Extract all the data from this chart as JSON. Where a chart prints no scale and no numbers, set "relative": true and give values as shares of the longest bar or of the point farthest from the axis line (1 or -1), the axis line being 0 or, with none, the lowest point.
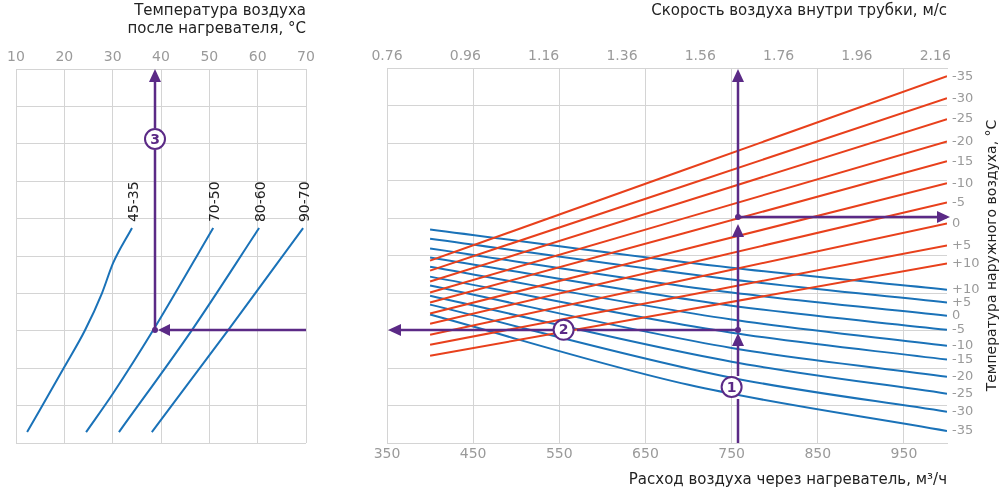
{
  "chart_data": [
    {
      "type": "line",
      "xlabel": "Температура воздуха после нагревателя, °С",
      "xlim": [
        10,
        70
      ],
      "xticks": [
        10,
        20,
        30,
        40,
        50,
        60,
        70
      ],
      "relative": true,
      "grid": true,
      "annotations": [
        "3"
      ],
      "series": [
        {
          "name": "45-35",
          "color": "#1a72b8",
          "x": [
            12.3,
            20,
            24.3,
            27.8,
            30.1,
            34
          ],
          "values": [
            -1,
            -0.821,
            -0.719,
            -0.617,
            -0.534,
            -0.438
          ]
        },
        {
          "name": "70-50",
          "color": "#1a72b8",
          "x": [
            24.5,
            30.1,
            38.4,
            50.8
          ],
          "values": [
            -1,
            -0.893,
            -0.719,
            -0.438
          ]
        },
        {
          "name": "80-60",
          "color": "#1a72b8",
          "x": [
            31.3,
            46.4,
            60.3
          ],
          "values": [
            -1,
            -0.719,
            -0.438
          ]
        },
        {
          "name": "90-70",
          "color": "#1a72b8",
          "x": [
            38.1,
            53.9,
            69.4
          ],
          "values": [
            -1,
            -0.719,
            -0.438
          ]
        }
      ]
    },
    {
      "type": "line",
      "xlabel": "Расход воздуха через нагреватель, м³/ч",
      "x2label": "Скорость воздуха внутри трубки, м/с",
      "ylabel": "Температура наружного воздуха, °С",
      "xlim": [
        350,
        1000
      ],
      "xticks": [
        350,
        450,
        550,
        650,
        750,
        850,
        950
      ],
      "x2lim": [
        0.76,
        2.19
      ],
      "x2ticks": [
        0.76,
        0.96,
        1.16,
        1.36,
        1.56,
        1.76,
        1.96,
        2.16
      ],
      "relative": true,
      "grid": true,
      "annotations": [
        {
          "text": "1",
          "x": 750,
          "y": 0.124
        },
        {
          "text": "2",
          "x": 555,
          "y": 0.285
        }
      ],
      "series": [
        {
          "name": "-35",
          "color": "#e8401c",
          "x": [
            400,
            1000
          ],
          "values": [
            0.48,
            1
          ]
        },
        {
          "name": "-30",
          "color": "#e8401c",
          "x": [
            400,
            1000
          ],
          "values": [
            0.452,
            0.938
          ]
        },
        {
          "name": "-25",
          "color": "#e8401c",
          "x": [
            400,
            1000
          ],
          "values": [
            0.421,
            0.879
          ]
        },
        {
          "name": "-20",
          "color": "#e8401c",
          "x": [
            400,
            1000
          ],
          "values": [
            0.39,
            0.816
          ]
        },
        {
          "name": "-15",
          "color": "#e8401c",
          "x": [
            400,
            1000
          ],
          "values": [
            0.362,
            0.76
          ]
        },
        {
          "name": "-10",
          "color": "#e8401c",
          "x": [
            400,
            1000
          ],
          "values": [
            0.331,
            0.698
          ]
        },
        {
          "name": "-5",
          "color": "#e8401c",
          "x": [
            400,
            1000
          ],
          "values": [
            0.302,
            0.644
          ]
        },
        {
          "name": "0",
          "color": "#e8401c",
          "x": [
            400,
            1000
          ],
          "values": [
            0.271,
            0.585
          ]
        },
        {
          "name": "+5",
          "color": "#e8401c",
          "x": [
            400,
            1000
          ],
          "values": [
            0.243,
            0.523
          ]
        },
        {
          "name": "+10",
          "color": "#e8401c",
          "x": [
            400,
            1000
          ],
          "values": [
            0.212,
            0.472
          ]
        },
        {
          "name": "+10",
          "color": "#1a72b8",
          "x": [
            400,
            750,
            1000
          ],
          "values": [
            0.568,
            0.46,
            0.398
          ]
        },
        {
          "name": "+5",
          "color": "#1a72b8",
          "x": [
            400,
            750,
            1000
          ],
          "values": [
            0.542,
            0.427,
            0.362
          ]
        },
        {
          "name": "0",
          "color": "#1a72b8",
          "x": [
            400,
            750,
            1000
          ],
          "values": [
            0.514,
            0.39,
            0.325
          ]
        },
        {
          "name": "-5",
          "color": "#1a72b8",
          "x": [
            400,
            750,
            1000
          ],
          "values": [
            0.489,
            0.353,
            0.285
          ]
        },
        {
          "name": "-10",
          "color": "#1a72b8",
          "x": [
            400,
            750,
            1000
          ],
          "values": [
            0.463,
            0.314,
            0.24
          ]
        },
        {
          "name": "-15",
          "color": "#1a72b8",
          "x": [
            400,
            750,
            1000
          ],
          "values": [
            0.435,
            0.277,
            0.201
          ]
        },
        {
          "name": "-20",
          "color": "#1a72b8",
          "x": [
            400,
            750,
            1000
          ],
          "values": [
            0.41,
            0.234,
            0.153
          ]
        },
        {
          "name": "-25",
          "color": "#1a72b8",
          "x": [
            400,
            750,
            1000
          ],
          "values": [
            0.381,
            0.195,
            0.105
          ]
        },
        {
          "name": "-30",
          "color": "#1a72b8",
          "x": [
            400,
            750,
            1000
          ],
          "values": [
            0.356,
            0.15,
            0.054
          ]
        },
        {
          "name": "-35",
          "color": "#1a72b8",
          "x": [
            400,
            700,
            1000
          ],
          "values": [
            0.328,
            0.13,
            0
          ]
        }
      ]
    }
  ]
}
